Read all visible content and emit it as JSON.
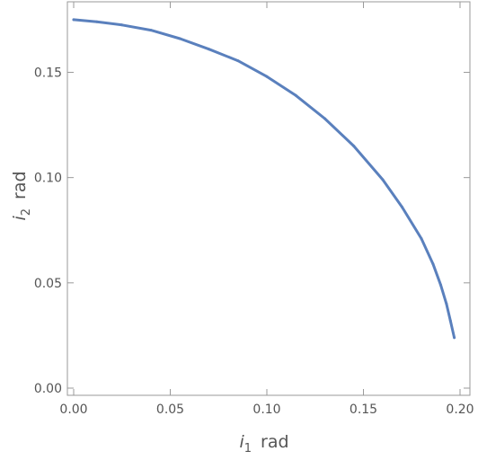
{
  "chart_data": {
    "type": "line",
    "title": "",
    "xlabel": {
      "symbol": "i",
      "subscript": "1",
      "unit": "rad"
    },
    "ylabel": {
      "symbol": "i",
      "subscript": "2",
      "unit": "rad"
    },
    "xlim": [
      0,
      0.2
    ],
    "ylim": [
      0,
      0.175
    ],
    "xticks": [
      "0.00",
      "0.05",
      "0.10",
      "0.15",
      "0.20"
    ],
    "yticks": [
      "0.00",
      "0.05",
      "0.10",
      "0.15"
    ],
    "grid": false,
    "legend": "none",
    "colors": {
      "series": "#5a80bd",
      "axis": "#9a9a9a",
      "tick_label": "#555555",
      "axis_label": "#555555"
    },
    "series": [
      {
        "x": [
          0.0,
          0.012,
          0.025,
          0.04,
          0.055,
          0.07,
          0.085,
          0.1,
          0.115,
          0.13,
          0.145,
          0.16,
          0.17,
          0.18,
          0.186,
          0.19,
          0.193,
          0.195,
          0.197
        ],
        "y": [
          0.175,
          0.174,
          0.1725,
          0.17,
          0.166,
          0.161,
          0.1555,
          0.148,
          0.139,
          0.128,
          0.115,
          0.099,
          0.086,
          0.071,
          0.059,
          0.049,
          0.04,
          0.032,
          0.024
        ]
      }
    ]
  }
}
